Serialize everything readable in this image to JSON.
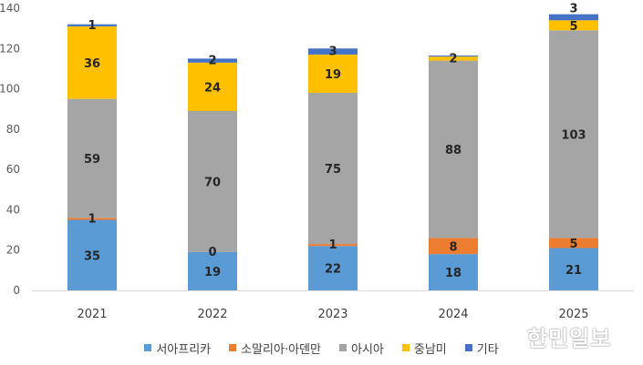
{
  "chart_data": {
    "type": "bar",
    "stacked": true,
    "categories": [
      "2021",
      "2022",
      "2023",
      "2024",
      "2025"
    ],
    "series": [
      {
        "name": "서아프리카",
        "color": "#5B9BD5",
        "values": [
          35,
          19,
          22,
          18,
          21
        ],
        "labels": [
          "35",
          "19",
          "22",
          "18",
          "21"
        ]
      },
      {
        "name": "소말리아·아덴만",
        "color": "#ED7D31",
        "values": [
          1,
          0,
          1,
          8,
          5
        ],
        "labels": [
          "1",
          "0",
          "1",
          "8",
          "5"
        ]
      },
      {
        "name": "아시아",
        "color": "#A5A5A5",
        "values": [
          59,
          70,
          75,
          88,
          103
        ],
        "labels": [
          "59",
          "70",
          "75",
          "88",
          "103"
        ]
      },
      {
        "name": "중남미",
        "color": "#FFC000",
        "values": [
          36,
          24,
          19,
          2,
          5
        ],
        "labels": [
          "36",
          "24",
          "19",
          "2",
          "5"
        ]
      },
      {
        "name": "기타",
        "color": "#4472C4",
        "values": [
          1,
          2,
          3,
          0.5,
          3
        ],
        "labels": [
          "1",
          "2",
          "3",
          "",
          "3"
        ]
      }
    ],
    "ylim": [
      0,
      140
    ],
    "yticks": [
      "0",
      "20",
      "40",
      "60",
      "80",
      "100",
      "120",
      "140"
    ],
    "grid": false,
    "legend_position": "bottom"
  },
  "watermark": "한민일보"
}
